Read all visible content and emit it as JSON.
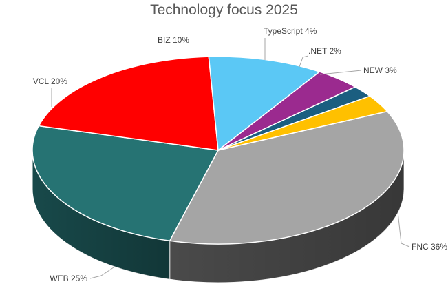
{
  "chart_data": {
    "type": "pie",
    "title": "Technology focus 2025",
    "slices": [
      {
        "name": "FNC",
        "value": 36,
        "label": "FNC 36%",
        "color": "#a5a5a5",
        "side": "#4a4a4a"
      },
      {
        "name": "WEB",
        "value": 25,
        "label": "WEB 25%",
        "color": "#267373",
        "side": "#18494a"
      },
      {
        "name": "VCL",
        "value": 20,
        "label": "VCL 20%",
        "color": "#ff0000",
        "side": "#a30000"
      },
      {
        "name": "BIZ",
        "value": 10,
        "label": "BIZ 10%",
        "color": "#5bc8f5",
        "side": "#3a8fb0"
      },
      {
        "name": "TypeScript",
        "value": 4,
        "label": "TypeScript 4%",
        "color": "#9b2a8f",
        "side": "#5e1857"
      },
      {
        "name": ".NET",
        "value": 2,
        "label": ".NET 2%",
        "color": "#1b5e80",
        "side": "#113a50"
      },
      {
        "name": "NEW",
        "value": 3,
        "label": "NEW 3%",
        "color": "#ffc000",
        "side": "#a37b00"
      }
    ],
    "style": "3d-pie",
    "legend": "none"
  }
}
